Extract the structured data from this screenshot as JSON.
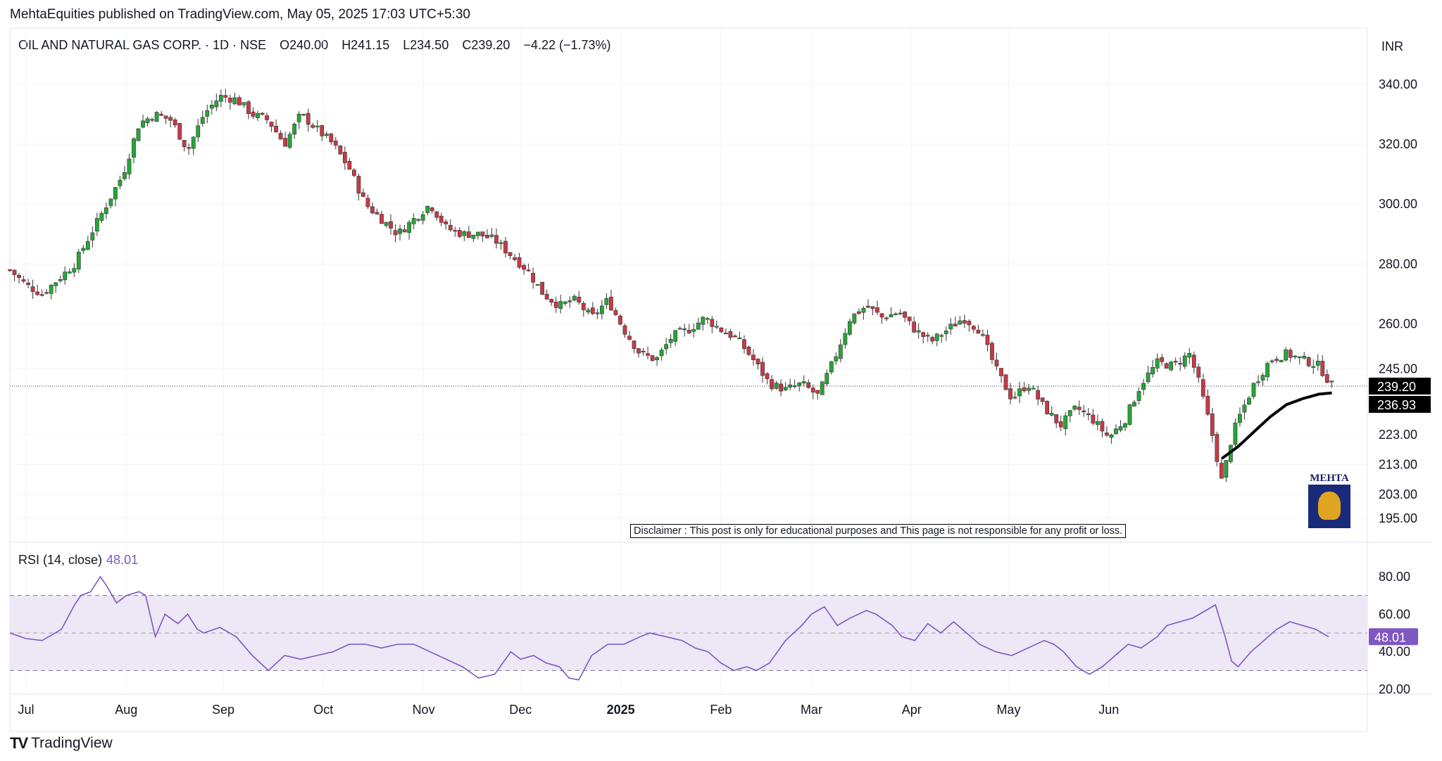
{
  "header": {
    "publisher_line": "MehtaEquities published on TradingView.com, May 05, 2025 17:03 UTC+5:30"
  },
  "symbol": {
    "name": "OIL AND NATURAL GAS CORP. · 1D · NSE",
    "open": "O240.00",
    "high": "H241.15",
    "low": "L234.50",
    "close": "C239.20",
    "change": "−4.22 (−1.73%)"
  },
  "currency": "INR",
  "disclaimer": "Disclaimer : This post is only for educational purposes and This page is not responsible for any profit or loss.",
  "logo": {
    "text": "MEHTA"
  },
  "footer": {
    "brand": "TradingView"
  },
  "rsi": {
    "label": "RSI (14, close)",
    "value": "48.01"
  },
  "colors": {
    "up": "#26a637",
    "down": "#c73a47",
    "ma": "#000000",
    "rsi": "#7e57c2",
    "rsi_band": "#ede7f6",
    "grid": "#f0f3fa"
  },
  "chart_data": [
    {
      "type": "candlestick",
      "title": "OIL AND NATURAL GAS CORP. · 1D · NSE",
      "y_ticks": [
        "340.00",
        "320.00",
        "300.00",
        "280.00",
        "260.00",
        "245.00",
        "223.00",
        "213.00",
        "203.00",
        "195.00"
      ],
      "x_ticks": [
        "Jul",
        "Aug",
        "Sep",
        "Oct",
        "Nov",
        "Dec",
        "2025",
        "Feb",
        "Mar",
        "Apr",
        "May",
        "Jun"
      ],
      "last_price": "239.20",
      "ma_last": "236.93",
      "grid": true,
      "close_path": [
        [
          0,
          278
        ],
        [
          5,
          273
        ],
        [
          10,
          270
        ],
        [
          16,
          276
        ],
        [
          20,
          280
        ],
        [
          25,
          290
        ],
        [
          30,
          300
        ],
        [
          35,
          310
        ],
        [
          40,
          327
        ],
        [
          45,
          330
        ],
        [
          50,
          328
        ],
        [
          55,
          318
        ],
        [
          60,
          330
        ],
        [
          65,
          336
        ],
        [
          70,
          335
        ],
        [
          75,
          330
        ],
        [
          80,
          328
        ],
        [
          85,
          320
        ],
        [
          90,
          330
        ],
        [
          95,
          325
        ],
        [
          100,
          320
        ],
        [
          105,
          312
        ],
        [
          110,
          300
        ],
        [
          115,
          295
        ],
        [
          120,
          290
        ],
        [
          125,
          295
        ],
        [
          130,
          300
        ],
        [
          135,
          292
        ],
        [
          140,
          290
        ],
        [
          145,
          290
        ],
        [
          150,
          288
        ],
        [
          155,
          283
        ],
        [
          160,
          278
        ],
        [
          165,
          270
        ],
        [
          170,
          266
        ],
        [
          175,
          268
        ],
        [
          180,
          262
        ],
        [
          185,
          268
        ],
        [
          190,
          258
        ],
        [
          195,
          250
        ],
        [
          200,
          248
        ],
        [
          205,
          256
        ],
        [
          210,
          258
        ],
        [
          215,
          262
        ],
        [
          220,
          258
        ],
        [
          225,
          255
        ],
        [
          230,
          248
        ],
        [
          235,
          240
        ],
        [
          240,
          238
        ],
        [
          245,
          240
        ],
        [
          250,
          236
        ],
        [
          255,
          248
        ],
        [
          260,
          262
        ],
        [
          265,
          266
        ],
        [
          270,
          262
        ],
        [
          275,
          264
        ],
        [
          280,
          258
        ],
        [
          285,
          254
        ],
        [
          290,
          258
        ],
        [
          295,
          262
        ],
        [
          300,
          258
        ],
        [
          305,
          245
        ],
        [
          310,
          235
        ],
        [
          315,
          240
        ],
        [
          320,
          232
        ],
        [
          325,
          226
        ],
        [
          330,
          232
        ],
        [
          335,
          228
        ],
        [
          340,
          222
        ],
        [
          345,
          228
        ],
        [
          350,
          240
        ],
        [
          355,
          247
        ],
        [
          360,
          246
        ],
        [
          365,
          250
        ],
        [
          368,
          240
        ],
        [
          372,
          223
        ],
        [
          375,
          207
        ],
        [
          378,
          222
        ],
        [
          380,
          228
        ],
        [
          385,
          240
        ],
        [
          390,
          248
        ],
        [
          395,
          250
        ],
        [
          400,
          248
        ],
        [
          405,
          246
        ],
        [
          409,
          239.2
        ]
      ],
      "ma_path": [
        [
          375,
          215
        ],
        [
          380,
          219
        ],
        [
          385,
          224
        ],
        [
          390,
          229
        ],
        [
          395,
          233
        ],
        [
          400,
          235
        ],
        [
          405,
          236.5
        ],
        [
          409,
          236.93
        ]
      ]
    },
    {
      "type": "line",
      "title": "RSI (14, close)",
      "y_ticks": [
        "80.00",
        "60.00",
        "40.00",
        "20.00"
      ],
      "bands": [
        30,
        70
      ],
      "mid": 50,
      "last": 48.01,
      "series": [
        {
          "points": [
            [
              0,
              50
            ],
            [
              5,
              47
            ],
            [
              10,
              46
            ],
            [
              16,
              52
            ],
            [
              20,
              65
            ],
            [
              22,
              70
            ],
            [
              25,
              72
            ],
            [
              28,
              80
            ],
            [
              30,
              75
            ],
            [
              33,
              66
            ],
            [
              36,
              70
            ],
            [
              40,
              72
            ],
            [
              42,
              70
            ],
            [
              45,
              48
            ],
            [
              48,
              60
            ],
            [
              52,
              55
            ],
            [
              55,
              60
            ],
            [
              58,
              52
            ],
            [
              60,
              50
            ],
            [
              65,
              53
            ],
            [
              70,
              48
            ],
            [
              75,
              38
            ],
            [
              80,
              30
            ],
            [
              85,
              38
            ],
            [
              90,
              36
            ],
            [
              95,
              38
            ],
            [
              100,
              40
            ],
            [
              105,
              44
            ],
            [
              110,
              44
            ],
            [
              115,
              42
            ],
            [
              120,
              44
            ],
            [
              125,
              44
            ],
            [
              130,
              40
            ],
            [
              135,
              36
            ],
            [
              140,
              32
            ],
            [
              145,
              26
            ],
            [
              150,
              28
            ],
            [
              155,
              40
            ],
            [
              158,
              36
            ],
            [
              162,
              38
            ],
            [
              166,
              34
            ],
            [
              170,
              32
            ],
            [
              173,
              26
            ],
            [
              176,
              25
            ],
            [
              180,
              38
            ],
            [
              185,
              44
            ],
            [
              190,
              44
            ],
            [
              195,
              48
            ],
            [
              198,
              50
            ],
            [
              203,
              48
            ],
            [
              208,
              46
            ],
            [
              212,
              42
            ],
            [
              216,
              40
            ],
            [
              220,
              34
            ],
            [
              224,
              30
            ],
            [
              228,
              32
            ],
            [
              231,
              30
            ],
            [
              235,
              34
            ],
            [
              240,
              46
            ],
            [
              245,
              54
            ],
            [
              248,
              60
            ],
            [
              252,
              64
            ],
            [
              256,
              54
            ],
            [
              260,
              58
            ],
            [
              265,
              62
            ],
            [
              268,
              60
            ],
            [
              273,
              54
            ],
            [
              276,
              48
            ],
            [
              280,
              46
            ],
            [
              284,
              55
            ],
            [
              288,
              50
            ],
            [
              292,
              56
            ],
            [
              296,
              50
            ],
            [
              300,
              44
            ],
            [
              305,
              40
            ],
            [
              310,
              38
            ],
            [
              315,
              42
            ],
            [
              320,
              46
            ],
            [
              323,
              44
            ],
            [
              326,
              40
            ],
            [
              330,
              32
            ],
            [
              334,
              28
            ],
            [
              338,
              32
            ],
            [
              342,
              38
            ],
            [
              346,
              44
            ],
            [
              350,
              42
            ],
            [
              355,
              48
            ],
            [
              358,
              54
            ],
            [
              362,
              56
            ],
            [
              366,
              58
            ],
            [
              370,
              62
            ],
            [
              373,
              65
            ],
            [
              376,
              48
            ],
            [
              378,
              35
            ],
            [
              380,
              32
            ],
            [
              384,
              40
            ],
            [
              388,
              46
            ],
            [
              392,
              52
            ],
            [
              396,
              56
            ],
            [
              400,
              54
            ],
            [
              404,
              52
            ],
            [
              408,
              48.01
            ]
          ]
        }
      ]
    }
  ]
}
